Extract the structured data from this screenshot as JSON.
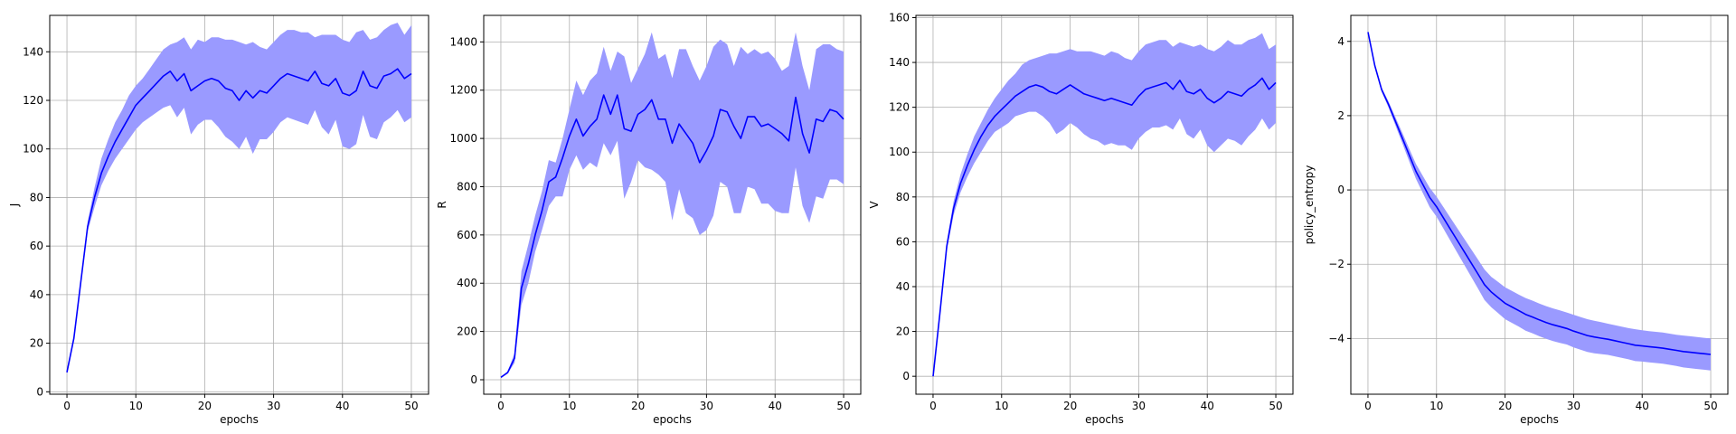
{
  "colors": {
    "line": "#0000ff",
    "band": "#9a9aff",
    "grid": "#b0b0b0",
    "axes": "#000000"
  },
  "chart_data": [
    {
      "type": "line",
      "xlabel": "epochs",
      "ylabel": "J",
      "xlim": [
        -2.5,
        52.5
      ],
      "ylim": [
        -1,
        155
      ],
      "xticks": [
        0,
        10,
        20,
        30,
        40,
        50
      ],
      "yticks": [
        0,
        20,
        40,
        60,
        80,
        100,
        120,
        140
      ],
      "grid": true,
      "x": [
        0,
        1,
        2,
        3,
        4,
        5,
        6,
        7,
        8,
        9,
        10,
        11,
        12,
        13,
        14,
        15,
        16,
        17,
        18,
        19,
        20,
        21,
        22,
        23,
        24,
        25,
        26,
        27,
        28,
        29,
        30,
        31,
        32,
        33,
        34,
        35,
        36,
        37,
        38,
        39,
        40,
        41,
        42,
        43,
        44,
        45,
        46,
        47,
        48,
        49,
        50
      ],
      "series": [
        {
          "mean": [
            8,
            22,
            45,
            68,
            80,
            90,
            97,
            103,
            108,
            113,
            118,
            121,
            124,
            127,
            130,
            132,
            128,
            131,
            124,
            126,
            128,
            129,
            128,
            125,
            124,
            120,
            124,
            121,
            124,
            123,
            126,
            129,
            131,
            130,
            129,
            128,
            132,
            127,
            126,
            129,
            123,
            122,
            124,
            132,
            126,
            125,
            130,
            131,
            133,
            129,
            131
          ],
          "upper": [
            9,
            23,
            46,
            70,
            84,
            96,
            104,
            111,
            116,
            122,
            126,
            129,
            133,
            137,
            141,
            143,
            144,
            146,
            141,
            145,
            144,
            146,
            146,
            145,
            145,
            144,
            143,
            144,
            142,
            141,
            144,
            147,
            149,
            149,
            148,
            148,
            146,
            147,
            147,
            147,
            145,
            144,
            148,
            149,
            145,
            146,
            149,
            151,
            152,
            147,
            151
          ],
          "lower": [
            7,
            21,
            44,
            66,
            76,
            85,
            91,
            96,
            100,
            104,
            108,
            111,
            113,
            115,
            117,
            118,
            113,
            117,
            106,
            110,
            112,
            112,
            109,
            105,
            103,
            100,
            105,
            98,
            104,
            104,
            107,
            111,
            113,
            112,
            111,
            110,
            116,
            109,
            106,
            112,
            101,
            100,
            102,
            114,
            105,
            104,
            111,
            113,
            116,
            111,
            113
          ]
        }
      ]
    },
    {
      "type": "line",
      "xlabel": "epochs",
      "ylabel": "R",
      "xlim": [
        -2.5,
        52.5
      ],
      "ylim": [
        -60,
        1510
      ],
      "xticks": [
        0,
        10,
        20,
        30,
        40,
        50
      ],
      "yticks": [
        0,
        200,
        400,
        600,
        800,
        1000,
        1200,
        1400
      ],
      "grid": true,
      "x": [
        0,
        1,
        2,
        3,
        4,
        5,
        6,
        7,
        8,
        9,
        10,
        11,
        12,
        13,
        14,
        15,
        16,
        17,
        18,
        19,
        20,
        21,
        22,
        23,
        24,
        25,
        26,
        27,
        28,
        29,
        30,
        31,
        32,
        33,
        34,
        35,
        36,
        37,
        38,
        39,
        40,
        41,
        42,
        43,
        44,
        45,
        46,
        47,
        48,
        49,
        50
      ],
      "series": [
        {
          "mean": [
            10,
            30,
            90,
            380,
            480,
            600,
            700,
            820,
            840,
            920,
            1010,
            1080,
            1010,
            1050,
            1080,
            1180,
            1100,
            1180,
            1040,
            1030,
            1100,
            1120,
            1160,
            1080,
            1080,
            980,
            1060,
            1020,
            980,
            900,
            950,
            1010,
            1120,
            1110,
            1050,
            1000,
            1090,
            1090,
            1050,
            1060,
            1040,
            1020,
            990,
            1170,
            1020,
            940,
            1080,
            1070,
            1120,
            1110,
            1080
          ],
          "upper": [
            12,
            35,
            110,
            450,
            560,
            680,
            780,
            910,
            900,
            1000,
            1120,
            1240,
            1180,
            1240,
            1270,
            1380,
            1280,
            1360,
            1340,
            1230,
            1290,
            1350,
            1440,
            1330,
            1350,
            1250,
            1370,
            1370,
            1300,
            1240,
            1300,
            1380,
            1410,
            1390,
            1300,
            1380,
            1350,
            1370,
            1350,
            1360,
            1330,
            1280,
            1300,
            1440,
            1300,
            1200,
            1370,
            1390,
            1390,
            1370,
            1360
          ],
          "lower": [
            8,
            25,
            70,
            310,
            400,
            530,
            620,
            720,
            760,
            760,
            870,
            930,
            870,
            900,
            880,
            980,
            930,
            990,
            750,
            820,
            910,
            880,
            870,
            850,
            820,
            660,
            790,
            690,
            670,
            600,
            620,
            680,
            820,
            800,
            690,
            690,
            800,
            790,
            730,
            730,
            700,
            690,
            690,
            880,
            720,
            650,
            760,
            750,
            830,
            830,
            810
          ]
        }
      ]
    },
    {
      "type": "line",
      "xlabel": "epochs",
      "ylabel": "V",
      "xlim": [
        -2.5,
        52.5
      ],
      "ylim": [
        -8,
        161
      ],
      "xticks": [
        0,
        10,
        20,
        30,
        40,
        50
      ],
      "yticks": [
        0,
        20,
        40,
        60,
        80,
        100,
        120,
        140,
        160
      ],
      "grid": true,
      "x": [
        0,
        1,
        2,
        3,
        4,
        5,
        6,
        7,
        8,
        9,
        10,
        11,
        12,
        13,
        14,
        15,
        16,
        17,
        18,
        19,
        20,
        21,
        22,
        23,
        24,
        25,
        26,
        27,
        28,
        29,
        30,
        31,
        32,
        33,
        34,
        35,
        36,
        37,
        38,
        39,
        40,
        41,
        42,
        43,
        44,
        45,
        46,
        47,
        48,
        49,
        50
      ],
      "series": [
        {
          "mean": [
            0,
            28,
            58,
            75,
            86,
            94,
            101,
            107,
            112,
            116,
            119,
            122,
            125,
            127,
            129,
            130,
            129,
            127,
            126,
            128,
            130,
            128,
            126,
            125,
            124,
            123,
            124,
            123,
            122,
            121,
            125,
            128,
            129,
            130,
            131,
            128,
            132,
            127,
            126,
            128,
            124,
            122,
            124,
            127,
            126,
            125,
            128,
            130,
            133,
            128,
            131
          ],
          "upper": [
            0,
            29,
            60,
            78,
            90,
            99,
            107,
            113,
            119,
            124,
            128,
            132,
            135,
            139,
            141,
            142,
            143,
            144,
            144,
            145,
            146,
            145,
            145,
            145,
            144,
            143,
            145,
            144,
            142,
            141,
            145,
            148,
            149,
            150,
            150,
            147,
            149,
            148,
            147,
            148,
            146,
            145,
            147,
            150,
            148,
            148,
            150,
            151,
            153,
            146,
            148
          ],
          "lower": [
            0,
            27,
            56,
            72,
            82,
            89,
            95,
            100,
            105,
            109,
            111,
            113,
            116,
            117,
            118,
            118,
            116,
            113,
            108,
            110,
            113,
            111,
            108,
            106,
            105,
            103,
            104,
            103,
            103,
            101,
            106,
            109,
            111,
            111,
            112,
            110,
            115,
            108,
            106,
            110,
            103,
            100,
            103,
            106,
            105,
            103,
            107,
            110,
            115,
            110,
            113
          ]
        }
      ]
    },
    {
      "type": "line",
      "xlabel": "epochs",
      "ylabel": "policy_entropy",
      "xlim": [
        -2.5,
        52.5
      ],
      "ylim": [
        -5.5,
        4.7
      ],
      "xticks": [
        0,
        10,
        20,
        30,
        40,
        50
      ],
      "yticks": [
        -4,
        -2,
        0,
        2,
        4
      ],
      "grid": true,
      "x": [
        0,
        1,
        2,
        3,
        4,
        5,
        6,
        7,
        8,
        9,
        10,
        11,
        12,
        13,
        14,
        15,
        16,
        17,
        18,
        19,
        20,
        21,
        22,
        23,
        24,
        25,
        26,
        27,
        28,
        29,
        30,
        31,
        32,
        33,
        34,
        35,
        36,
        37,
        38,
        39,
        40,
        41,
        42,
        43,
        44,
        45,
        46,
        47,
        48,
        49,
        50
      ],
      "series": [
        {
          "mean": [
            4.25,
            3.35,
            2.7,
            2.3,
            1.85,
            1.4,
            0.95,
            0.5,
            0.15,
            -0.2,
            -0.45,
            -0.75,
            -1.05,
            -1.35,
            -1.65,
            -1.95,
            -2.25,
            -2.55,
            -2.75,
            -2.9,
            -3.05,
            -3.15,
            -3.25,
            -3.35,
            -3.42,
            -3.5,
            -3.57,
            -3.63,
            -3.68,
            -3.73,
            -3.8,
            -3.86,
            -3.92,
            -3.96,
            -3.99,
            -4.02,
            -4.06,
            -4.1,
            -4.14,
            -4.18,
            -4.2,
            -4.22,
            -4.24,
            -4.26,
            -4.29,
            -4.32,
            -4.35,
            -4.37,
            -4.39,
            -4.41,
            -4.43
          ],
          "upper": [
            4.27,
            3.4,
            2.76,
            2.38,
            1.96,
            1.54,
            1.12,
            0.7,
            0.38,
            0.06,
            -0.18,
            -0.46,
            -0.74,
            -1.02,
            -1.3,
            -1.58,
            -1.86,
            -2.14,
            -2.34,
            -2.48,
            -2.62,
            -2.72,
            -2.82,
            -2.91,
            -2.98,
            -3.06,
            -3.13,
            -3.19,
            -3.24,
            -3.3,
            -3.36,
            -3.42,
            -3.48,
            -3.52,
            -3.56,
            -3.6,
            -3.64,
            -3.68,
            -3.72,
            -3.75,
            -3.78,
            -3.8,
            -3.82,
            -3.84,
            -3.87,
            -3.9,
            -3.92,
            -3.94,
            -3.96,
            -3.98,
            -4.0
          ],
          "lower": [
            4.23,
            3.3,
            2.64,
            2.22,
            1.74,
            1.26,
            0.78,
            0.3,
            -0.08,
            -0.46,
            -0.72,
            -1.04,
            -1.36,
            -1.68,
            -2.0,
            -2.32,
            -2.64,
            -2.96,
            -3.16,
            -3.32,
            -3.48,
            -3.58,
            -3.68,
            -3.79,
            -3.86,
            -3.94,
            -4.01,
            -4.07,
            -4.12,
            -4.16,
            -4.24,
            -4.3,
            -4.36,
            -4.4,
            -4.42,
            -4.44,
            -4.48,
            -4.52,
            -4.56,
            -4.61,
            -4.62,
            -4.64,
            -4.66,
            -4.68,
            -4.71,
            -4.74,
            -4.78,
            -4.8,
            -4.82,
            -4.84,
            -4.86
          ]
        }
      ]
    }
  ]
}
